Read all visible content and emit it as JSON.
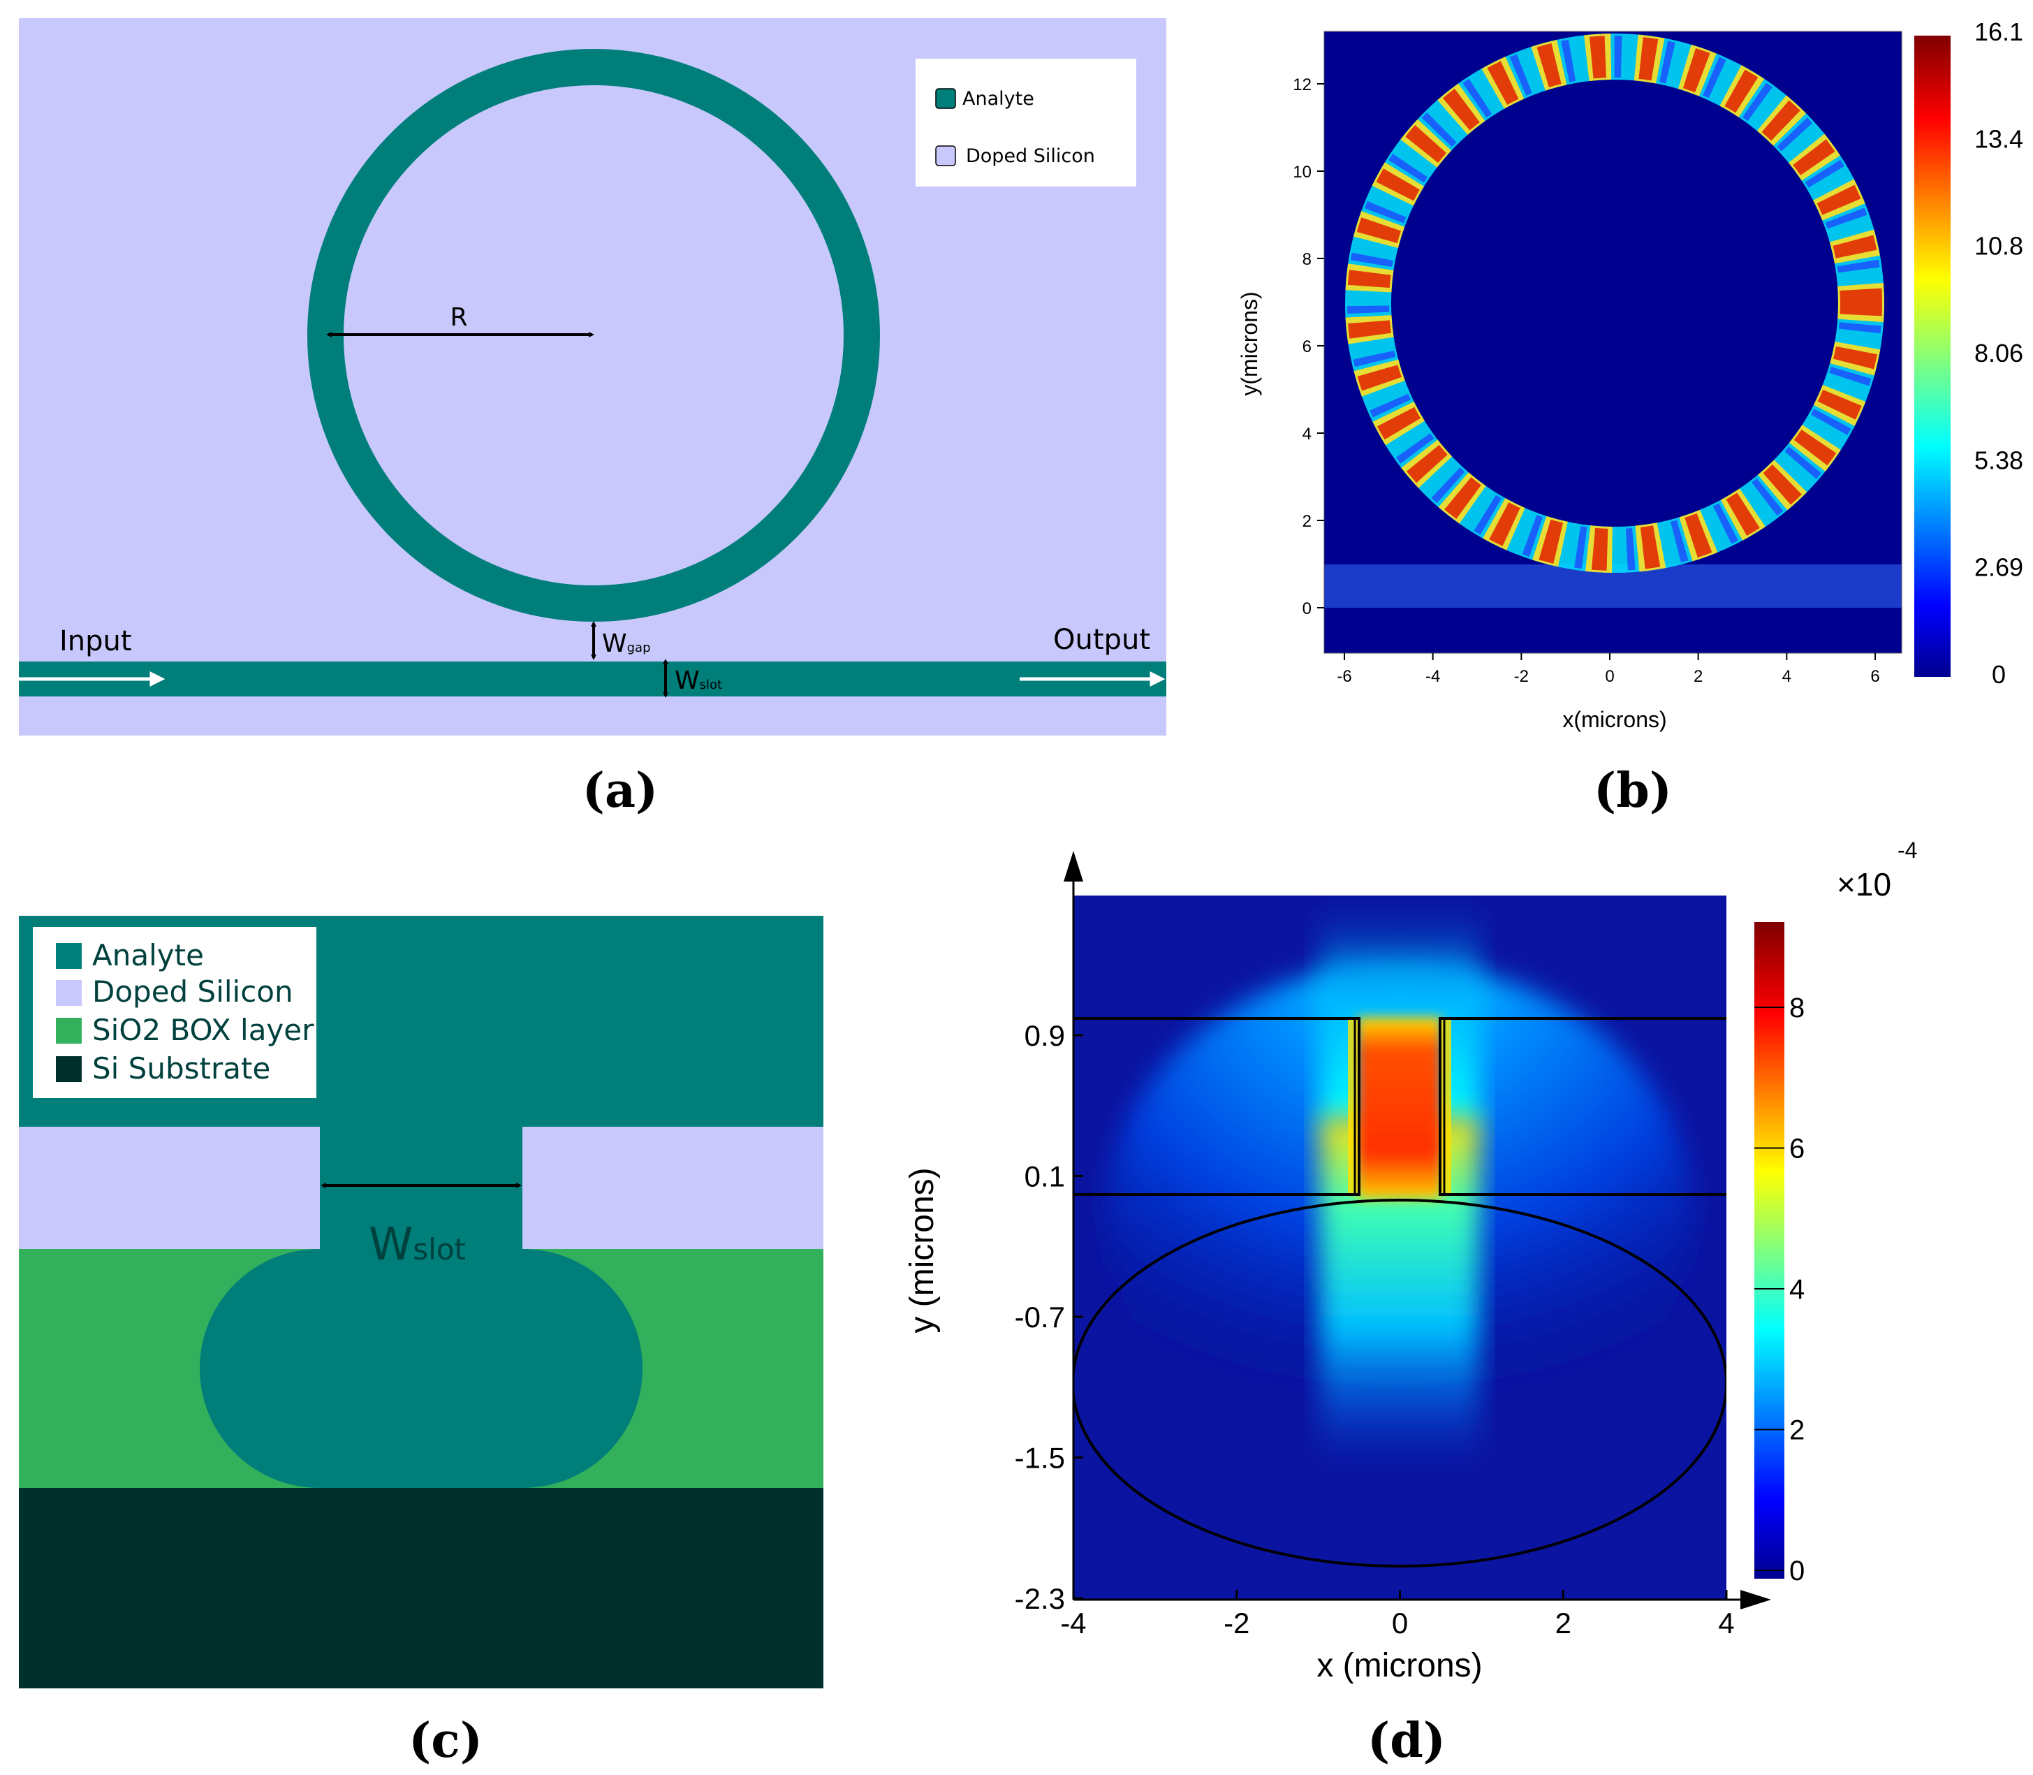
{
  "colors": {
    "analyte": "#007e7a",
    "doped_silicon": "#c8c8fc",
    "sio2": "#33b05c",
    "substrate": "#00302b",
    "field_bg": "#0a14a0"
  },
  "panel_a": {
    "caption": "(a)",
    "legend": {
      "analyte": "Analyte",
      "doped_silicon": "Doped Silicon"
    },
    "radius_label": "R",
    "input_label": "Input",
    "output_label": "Output",
    "gap_label": "W",
    "gap_sub": "gap",
    "slot_label": "W",
    "slot_sub": "slot"
  },
  "panel_b": {
    "caption": "(b)",
    "xlabel": "x(microns)",
    "ylabel": "y(microns)",
    "xticks": [
      "-6",
      "-4",
      "-2",
      "0",
      "2",
      "4",
      "6"
    ],
    "yticks": [
      "0",
      "2",
      "4",
      "6",
      "8",
      "10",
      "12"
    ],
    "colorbar_ticks": [
      "16.1",
      "13.4",
      "10.8",
      "8.06",
      "5.38",
      "2.69",
      "0"
    ]
  },
  "panel_c": {
    "caption": "(c)",
    "legend": {
      "analyte": "Analyte",
      "doped_silicon": "Doped Silicon",
      "sio2": "SiO2 BOX layer",
      "substrate": "Si Substrate"
    },
    "slot_label": "W",
    "slot_sub": "slot"
  },
  "panel_d": {
    "caption": "(d)",
    "xlabel": "x (microns)",
    "ylabel": "y (microns)",
    "xticks": [
      "-4",
      "-2",
      "0",
      "2",
      "4"
    ],
    "yticks": [
      "0.9",
      "0.1",
      "-0.7",
      "-1.5",
      "-2.3"
    ],
    "colorbar_ticks": [
      "8",
      "6",
      "4",
      "2",
      "0"
    ],
    "colorbar_scale": "×10",
    "colorbar_exp": "-4"
  }
}
